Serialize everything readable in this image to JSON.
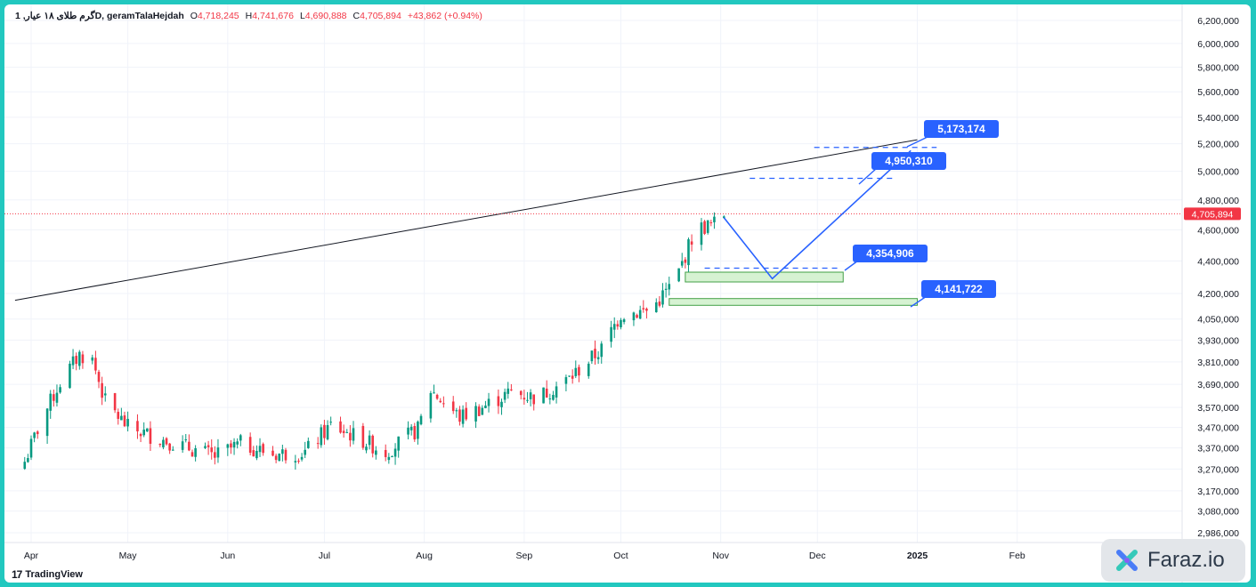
{
  "legend": {
    "symbol": "گرم طلای ۱۸ عیار, 1D, geramTalaHejdah",
    "open_label": "O",
    "open": "4,718,245",
    "high_label": "H",
    "high": "4,741,676",
    "low_label": "L",
    "low": "4,690,888",
    "close_label": "C",
    "close": "4,705,894",
    "change": "+43,862 (+0.94%)"
  },
  "branding": {
    "tradingview": "TradingView",
    "watermark": "Faraz.io"
  },
  "colors": {
    "up": "#089981",
    "down": "#f23645",
    "annotation": "#2962ff",
    "zone_fill": "#d6f2d2",
    "zone_border": "#43a047",
    "trendline": "#131722"
  },
  "chart_data": {
    "type": "candlestick",
    "y_scale": "log",
    "y_ticks": [
      "6,200,000",
      "6,000,000",
      "5,800,000",
      "5,600,000",
      "5,400,000",
      "5,200,000",
      "5,000,000",
      "4,800,000",
      "4,600,000",
      "4,400,000",
      "4,200,000",
      "4,050,000",
      "3,930,000",
      "3,810,000",
      "3,690,000",
      "3,570,000",
      "3,470,000",
      "3,370,000",
      "3,270,000",
      "3,170,000",
      "3,080,000",
      "2,986,000"
    ],
    "x_ticks": [
      "Apr",
      "May",
      "Jun",
      "Jul",
      "Aug",
      "Sep",
      "Oct",
      "Nov",
      "Dec",
      "2025",
      "Feb"
    ],
    "last_price_label": "4,705,894",
    "last_price": 4705894,
    "price_series_approx": [
      [
        "2024-03-28",
        3230000
      ],
      [
        "2024-04-04",
        3500000
      ],
      [
        "2024-04-10",
        3700000
      ],
      [
        "2024-04-16",
        3850000
      ],
      [
        "2024-04-20",
        3820000
      ],
      [
        "2024-04-24",
        3600000
      ],
      [
        "2024-05-01",
        3470000
      ],
      [
        "2024-05-10",
        3420000
      ],
      [
        "2024-05-20",
        3370000
      ],
      [
        "2024-05-28",
        3330000
      ],
      [
        "2024-06-05",
        3390000
      ],
      [
        "2024-06-15",
        3340000
      ],
      [
        "2024-06-25",
        3350000
      ],
      [
        "2024-07-03",
        3480000
      ],
      [
        "2024-07-10",
        3430000
      ],
      [
        "2024-07-20",
        3350000
      ],
      [
        "2024-07-30",
        3460000
      ],
      [
        "2024-08-03",
        3660000
      ],
      [
        "2024-08-12",
        3520000
      ],
      [
        "2024-08-20",
        3580000
      ],
      [
        "2024-08-28",
        3650000
      ],
      [
        "2024-09-05",
        3620000
      ],
      [
        "2024-09-15",
        3720000
      ],
      [
        "2024-09-25",
        3880000
      ],
      [
        "2024-10-01",
        4080000
      ],
      [
        "2024-10-10",
        4100000
      ],
      [
        "2024-10-18",
        4280000
      ],
      [
        "2024-10-24",
        4600000
      ],
      [
        "2024-10-30",
        4640000
      ],
      [
        "2024-11-02",
        4705894
      ]
    ],
    "annotations": {
      "targets": [
        5173174,
        4950310
      ],
      "target_labels": [
        "5,173,174",
        "4,950,310"
      ],
      "support_levels": [
        4354906,
        4141722
      ],
      "support_labels": [
        "4,354,906",
        "4,141,722"
      ],
      "projected_path": [
        [
          "2024-11-02",
          4680000
        ],
        [
          "2024-11-17",
          4290000
        ],
        [
          "2024-12-30",
          5150000
        ]
      ],
      "demand_zones": [
        [
          4270000,
          4330000
        ],
        [
          4130000,
          4170000
        ]
      ],
      "trendline": [
        [
          "2024-03-27",
          4160000
        ],
        [
          "2025-01-01",
          5230000
        ]
      ]
    }
  }
}
